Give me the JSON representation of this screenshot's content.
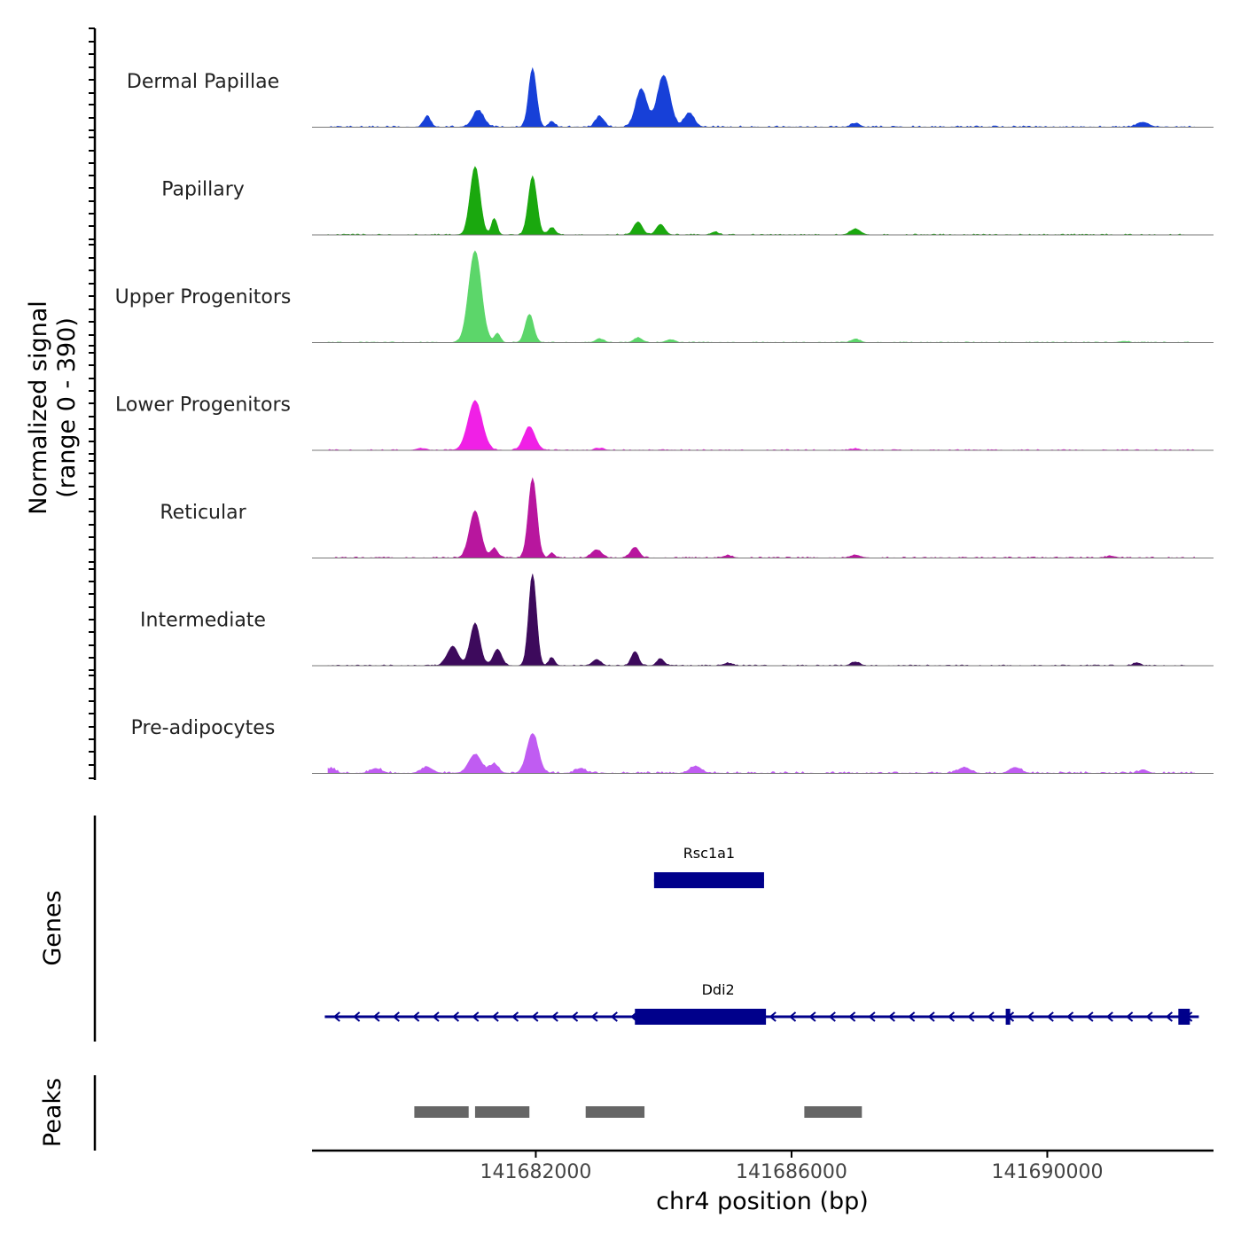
{
  "chart_data": {
    "type": "area",
    "title": "",
    "ylabel_line1": "Normalized signal",
    "ylabel_line2": "(range 0 - 390)",
    "xlabel": "chr4 position (bp)",
    "xlim": [
      141678500,
      141692600
    ],
    "ylim": [
      0,
      390
    ],
    "x_ticks": [
      141682000,
      141686000,
      141690000
    ],
    "x_tick_labels": [
      "141682000",
      "141686000",
      "141690000"
    ],
    "tracks": [
      {
        "name": "Dermal Papillae",
        "color": "#1740d8",
        "peaks": [
          [
            141680300,
            45,
            50
          ],
          [
            141681100,
            70,
            80
          ],
          [
            141681950,
            250,
            55
          ],
          [
            141682250,
            25,
            40
          ],
          [
            141683000,
            45,
            60
          ],
          [
            141683650,
            160,
            80
          ],
          [
            141684000,
            220,
            90
          ],
          [
            141684400,
            60,
            70
          ],
          [
            141687000,
            15,
            60
          ],
          [
            141691500,
            20,
            80
          ]
        ],
        "baseline": 6
      },
      {
        "name": "Papillary",
        "color": "#1aa80e",
        "peaks": [
          [
            141681050,
            290,
            70
          ],
          [
            141681350,
            70,
            40
          ],
          [
            141681950,
            250,
            60
          ],
          [
            141682250,
            30,
            50
          ],
          [
            141683600,
            55,
            60
          ],
          [
            141683950,
            45,
            60
          ],
          [
            141684800,
            12,
            50
          ],
          [
            141687000,
            25,
            70
          ]
        ],
        "baseline": 4
      },
      {
        "name": "Upper Progenitors",
        "color": "#5cd66a",
        "peaks": [
          [
            141681050,
            390,
            90
          ],
          [
            141681400,
            40,
            40
          ],
          [
            141681900,
            120,
            60
          ],
          [
            141683000,
            15,
            60
          ],
          [
            141683600,
            20,
            60
          ],
          [
            141684100,
            12,
            60
          ],
          [
            141687000,
            15,
            60
          ],
          [
            141691200,
            5,
            60
          ]
        ],
        "baseline": 3
      },
      {
        "name": "Lower Progenitors",
        "color": "#f020e6",
        "peaks": [
          [
            141681050,
            210,
            100
          ],
          [
            141681900,
            100,
            80
          ],
          [
            141680200,
            8,
            60
          ],
          [
            141683000,
            8,
            60
          ],
          [
            141687000,
            6,
            60
          ]
        ],
        "baseline": 4
      },
      {
        "name": "Reticular",
        "color": "#b8169e",
        "peaks": [
          [
            141681050,
            200,
            80
          ],
          [
            141681350,
            40,
            50
          ],
          [
            141681950,
            340,
            60
          ],
          [
            141682250,
            20,
            40
          ],
          [
            141682950,
            35,
            70
          ],
          [
            141683550,
            45,
            60
          ],
          [
            141685000,
            10,
            60
          ],
          [
            141687000,
            12,
            70
          ],
          [
            141691000,
            8,
            60
          ]
        ],
        "baseline": 5
      },
      {
        "name": "Intermediate",
        "color": "#3d0a5c",
        "peaks": [
          [
            141680700,
            80,
            80
          ],
          [
            141681050,
            180,
            70
          ],
          [
            141681400,
            70,
            60
          ],
          [
            141681950,
            390,
            55
          ],
          [
            141682250,
            35,
            40
          ],
          [
            141682950,
            25,
            60
          ],
          [
            141683550,
            60,
            50
          ],
          [
            141683950,
            30,
            50
          ],
          [
            141685000,
            10,
            60
          ],
          [
            141687000,
            15,
            60
          ],
          [
            141691400,
            12,
            50
          ]
        ],
        "baseline": 4
      },
      {
        "name": "Pre-adipocytes",
        "color": "#c05cf2",
        "peaks": [
          [
            141681050,
            80,
            90
          ],
          [
            141681350,
            40,
            60
          ],
          [
            141681950,
            170,
            80
          ],
          [
            141678800,
            20,
            60
          ],
          [
            141679500,
            20,
            80
          ],
          [
            141680300,
            25,
            80
          ],
          [
            141682700,
            20,
            70
          ],
          [
            141684500,
            30,
            80
          ],
          [
            141688700,
            25,
            80
          ],
          [
            141689500,
            25,
            80
          ],
          [
            141691500,
            15,
            60
          ]
        ],
        "baseline": 8
      }
    ],
    "genes": [
      {
        "name": "Rsc1a1",
        "start": 141683850,
        "end": 141685570,
        "strand": "+",
        "exons": [
          [
            141683850,
            141685570
          ]
        ]
      },
      {
        "name": "Ddi2",
        "start": 141678700,
        "end": 141692370,
        "strand": "-",
        "exons": [
          [
            141683550,
            141685600
          ],
          [
            141689350,
            141689420
          ],
          [
            141692050,
            141692230
          ]
        ]
      }
    ],
    "gene_track_label": "Genes",
    "peaks_track_label": "Peaks",
    "peak_regions": [
      [
        141680100,
        141680950
      ],
      [
        141681050,
        141681900
      ],
      [
        141682780,
        141683700
      ],
      [
        141686200,
        141687100
      ]
    ]
  }
}
